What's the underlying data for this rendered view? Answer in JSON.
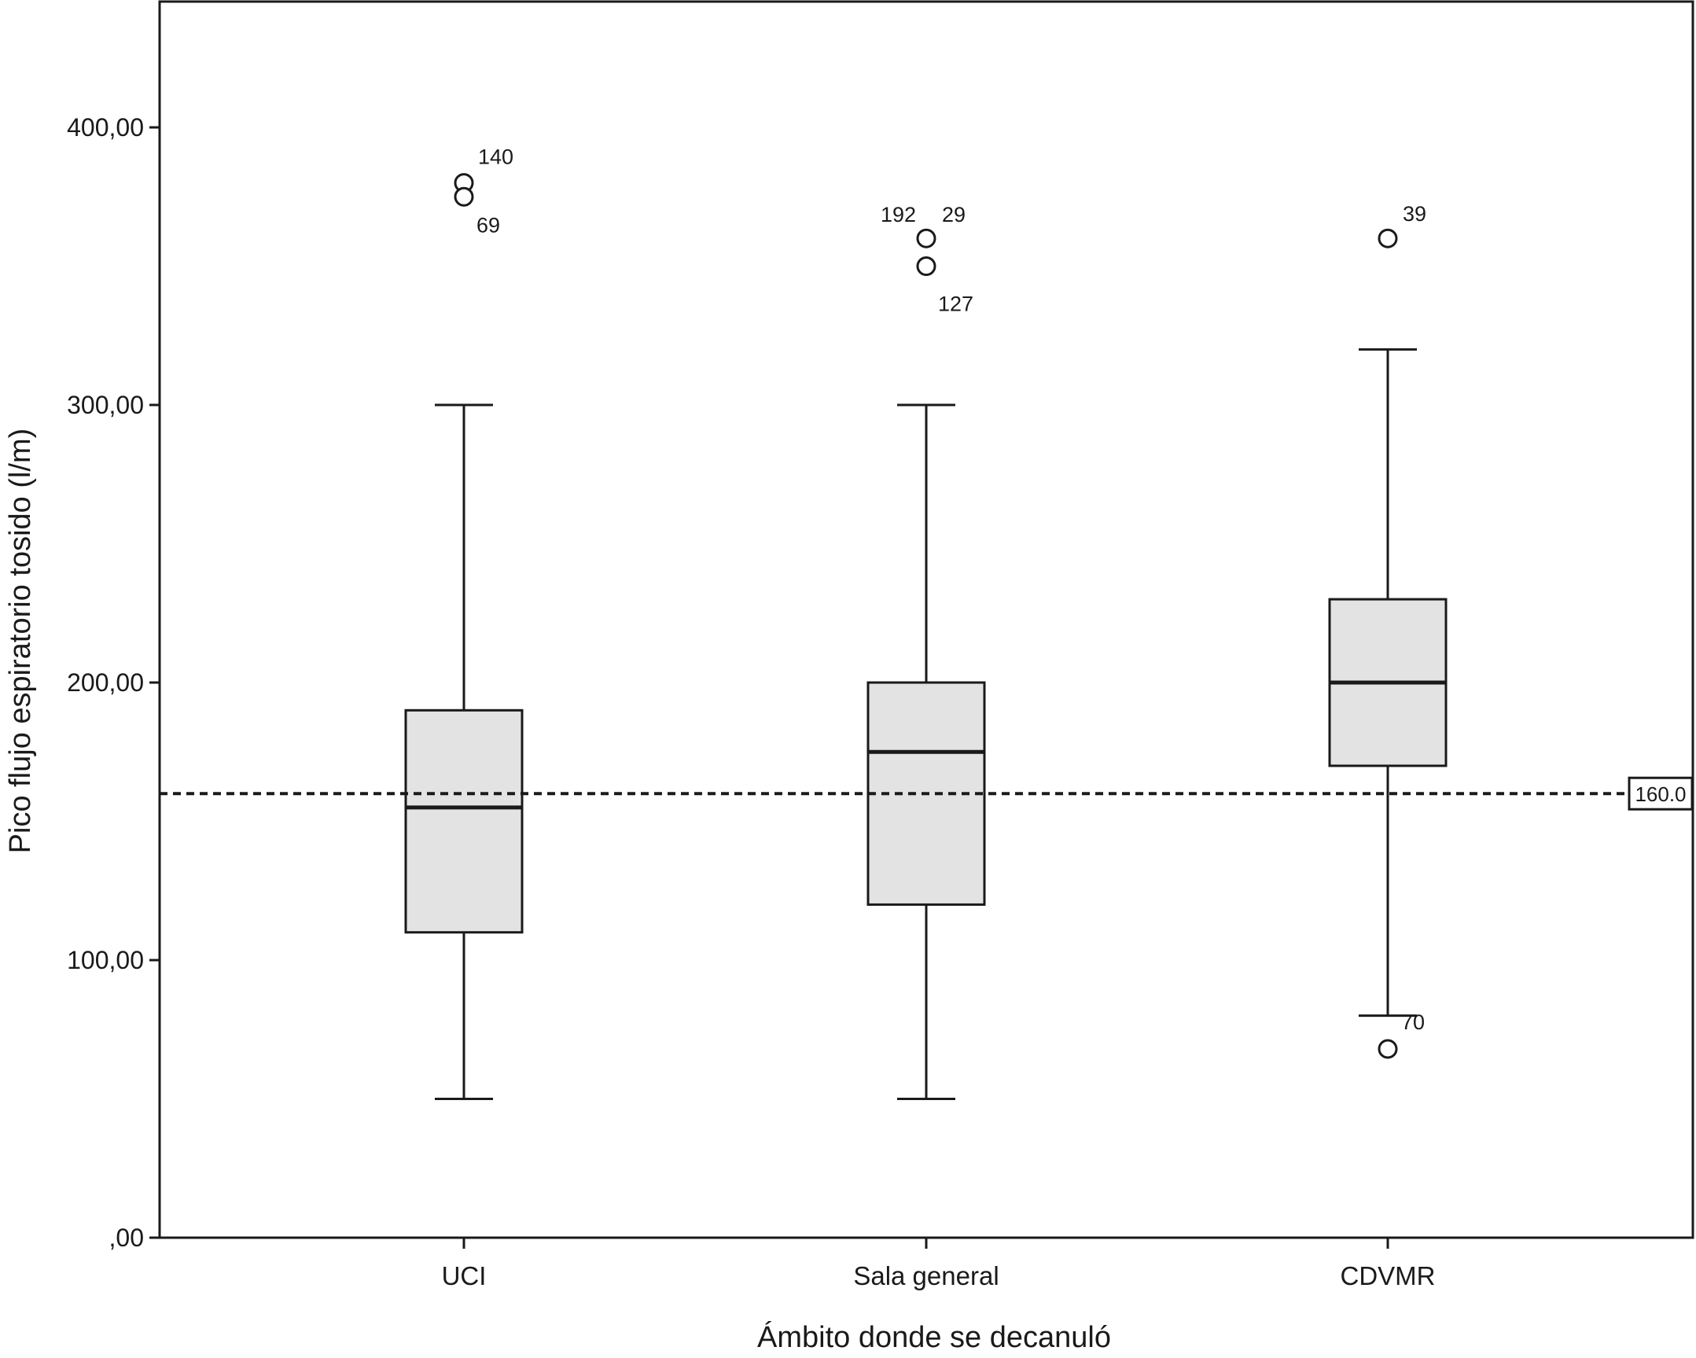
{
  "chart_data": {
    "type": "boxplot",
    "xlabel": "Ámbito donde se decanuló",
    "ylabel": "Pico flujo espiratorio tosido (l/m)",
    "ylim": [
      0,
      440
    ],
    "yticks": [
      {
        "value": 0,
        "label": ",00"
      },
      {
        "value": 100,
        "label": "100,00"
      },
      {
        "value": 200,
        "label": "200,00"
      },
      {
        "value": 300,
        "label": "300,00"
      },
      {
        "value": 400,
        "label": "400,00"
      }
    ],
    "categories": [
      "UCI",
      "Sala general",
      "CDVMR"
    ],
    "boxes": [
      {
        "category": "UCI",
        "whisker_low": 50,
        "q1": 110,
        "median": 155,
        "q3": 190,
        "whisker_high": 300,
        "outliers": [
          {
            "value": 380,
            "label": "140"
          },
          {
            "value": 375,
            "label": "69"
          }
        ]
      },
      {
        "category": "Sala general",
        "whisker_low": 50,
        "q1": 120,
        "median": 175,
        "q3": 200,
        "whisker_high": 300,
        "outliers": [
          {
            "value": 360,
            "label": "192"
          },
          {
            "value": 360,
            "label": "29"
          },
          {
            "value": 350,
            "label": "127"
          }
        ]
      },
      {
        "category": "CDVMR",
        "whisker_low": 80,
        "q1": 170,
        "median": 200,
        "q3": 230,
        "whisker_high": 320,
        "outliers": [
          {
            "value": 360,
            "label": "39"
          },
          {
            "value": 68,
            "label": "70"
          }
        ]
      }
    ],
    "reference_line": {
      "value": 160,
      "label": "160.0",
      "style": "dashed"
    },
    "box_fill": "#e3e3e3",
    "line_color": "#1a1a1a",
    "grid": false,
    "legend": "none"
  }
}
